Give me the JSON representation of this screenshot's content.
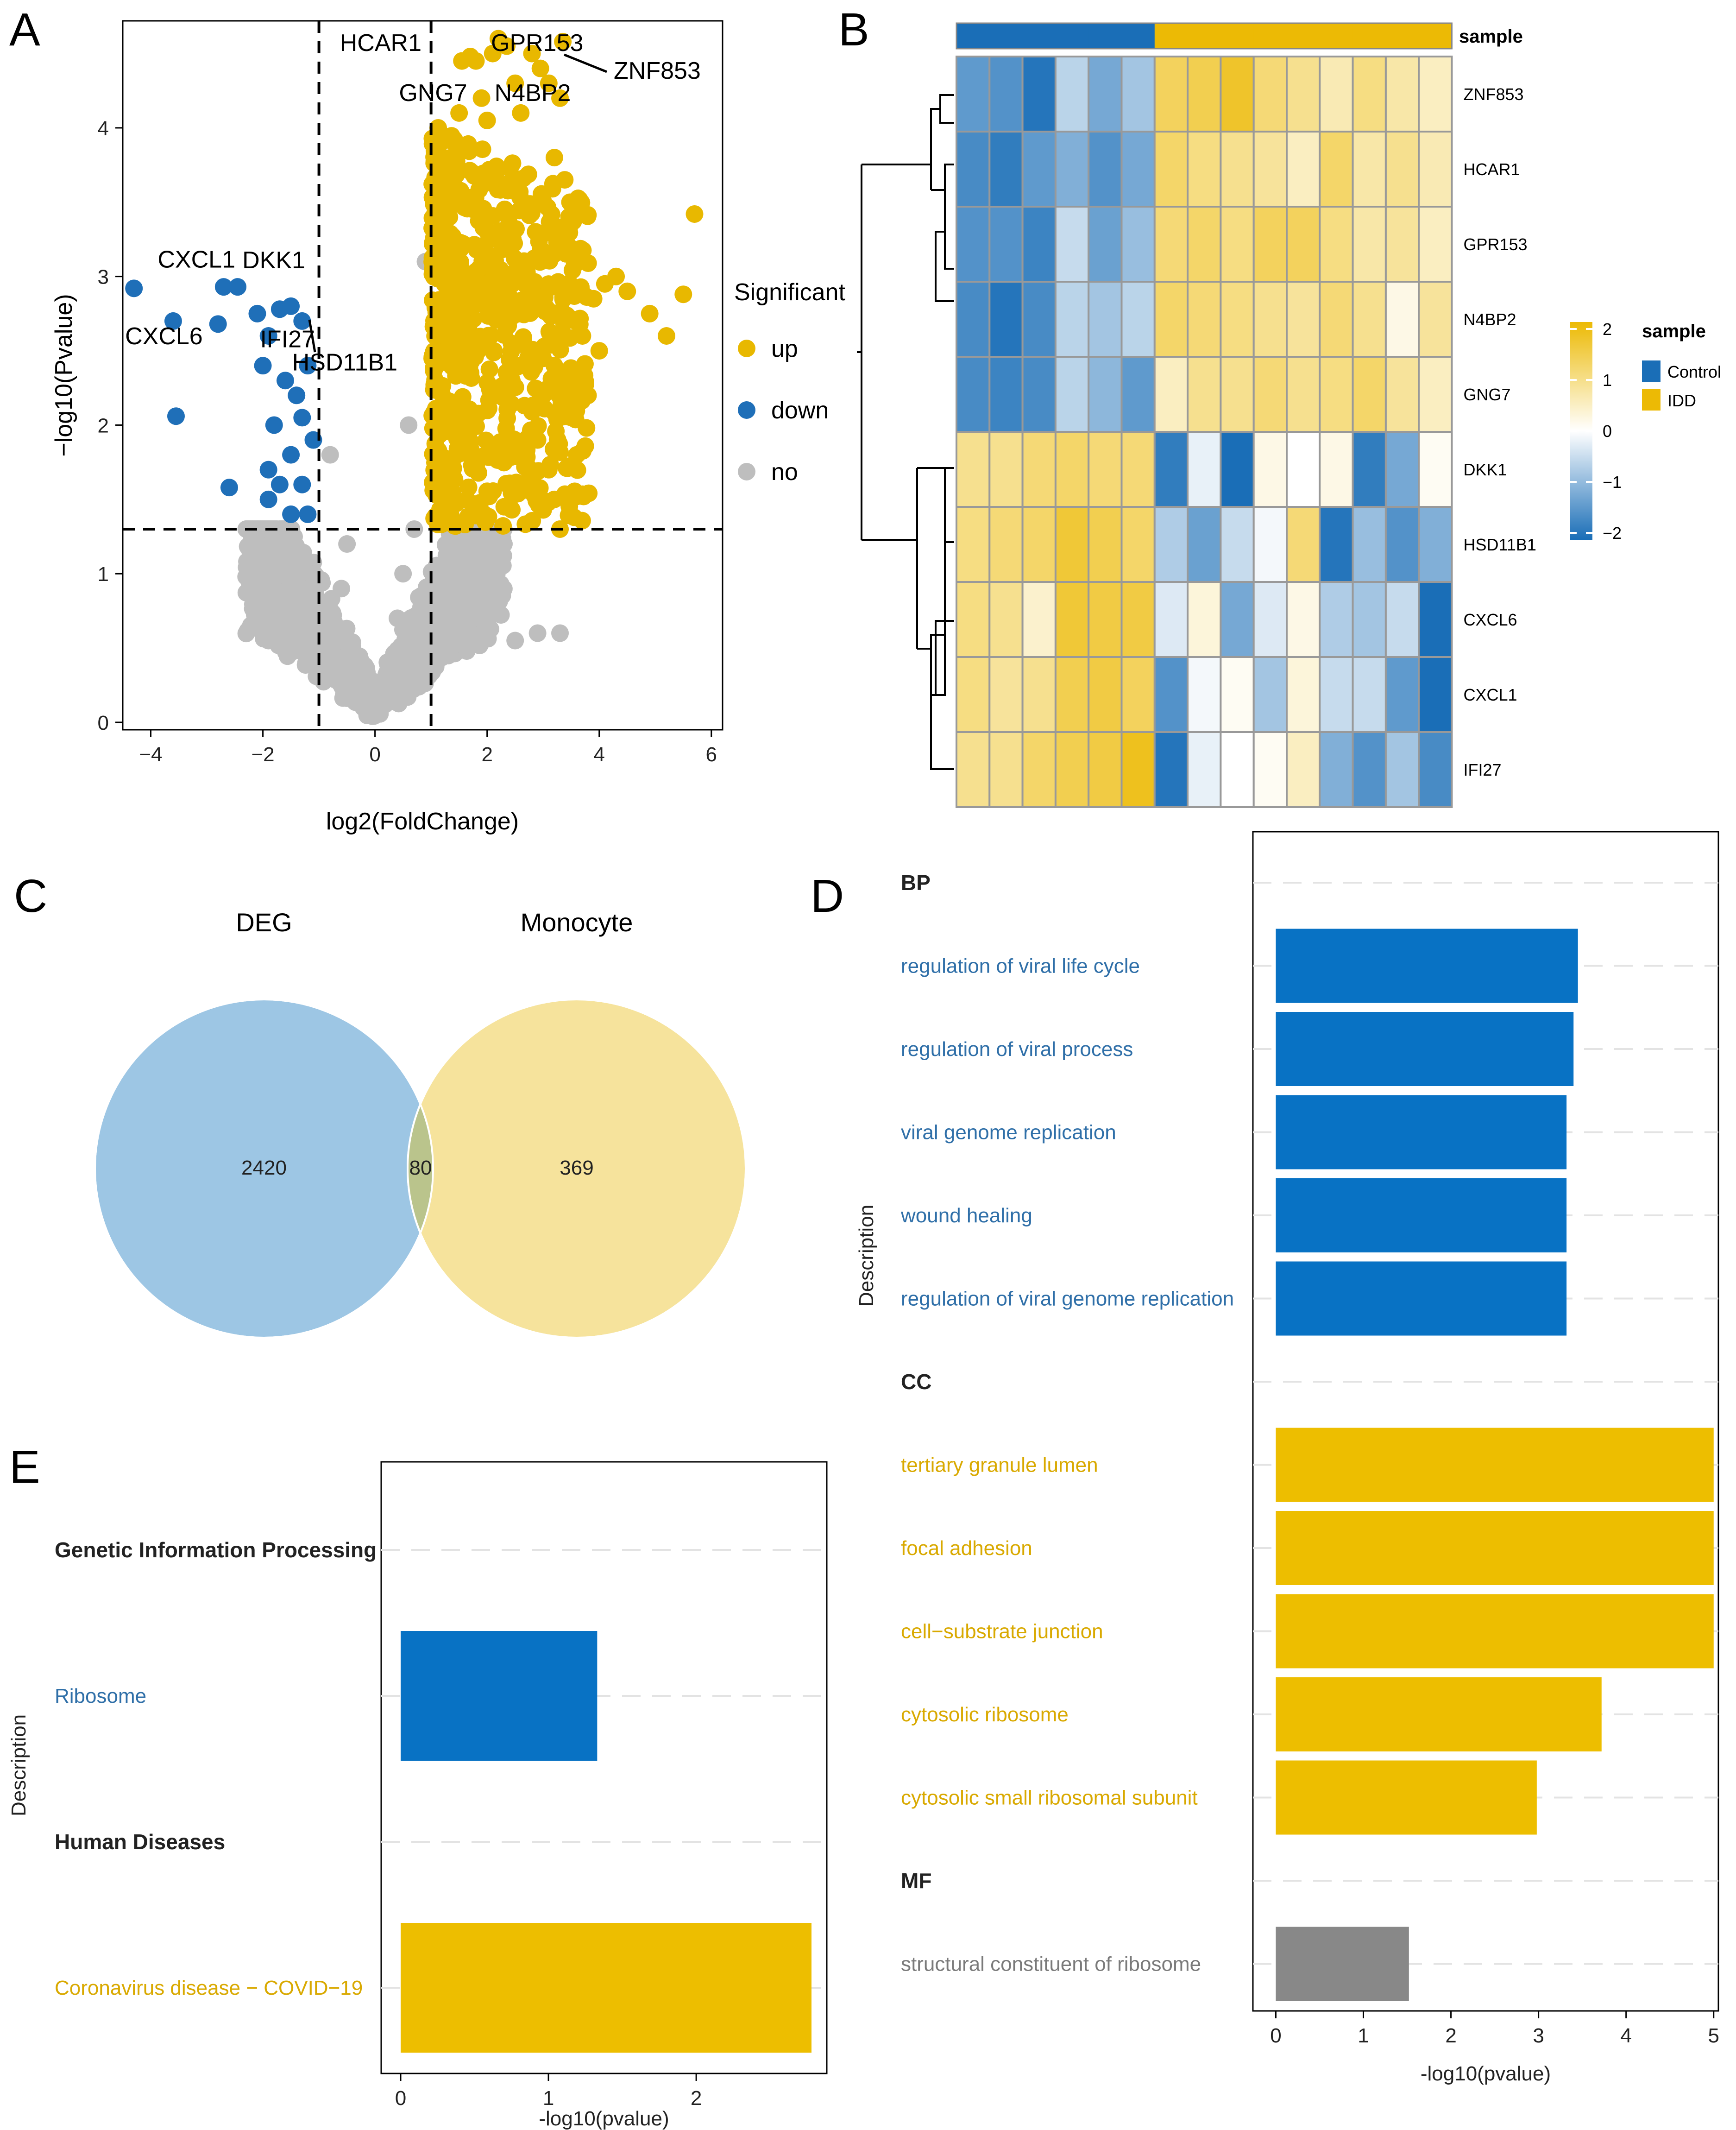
{
  "colors": {
    "up": "#E8B800",
    "down": "#1F6FB8",
    "no": "#BEBEBE",
    "bar_blue": "#0872C4",
    "bar_gold": "#EDBE00",
    "bar_gray": "#888888",
    "venn_blue": "#9DC6E4",
    "venn_yellow": "#F6E39C",
    "venn_overlap": "#BAC48C",
    "heat_low": "#1A6EB7",
    "heat_mid": "#FFFFFF",
    "heat_high": "#ECBA05",
    "term_blue": "#2F6FA8",
    "term_gold": "#D9A900",
    "term_gray": "#7A7A7A"
  },
  "chart_data": [
    {
      "panel": "A",
      "type": "scatter",
      "subtype": "volcano",
      "xlabel": "log2(FoldChange)",
      "ylabel": "−log10(Pvalue)",
      "xlim": [
        -4.5,
        6.2
      ],
      "ylim": [
        -0.05,
        4.72
      ],
      "xticks": [
        -4,
        -2,
        0,
        2,
        4,
        6
      ],
      "yticks": [
        0,
        1,
        2,
        3,
        4
      ],
      "xtick_labels": [
        "−4",
        "−2",
        "0",
        "2",
        "4",
        "6"
      ],
      "ytick_labels": [
        "0",
        "1",
        "2",
        "3",
        "4"
      ],
      "thresholds": {
        "x": [
          -1,
          1
        ],
        "y": 1.3
      },
      "legend": {
        "title": "Significant",
        "items": [
          "up",
          "down",
          "no"
        ],
        "position": "right"
      },
      "labeled_points": [
        {
          "gene": "HCAR1",
          "x": 1.55,
          "y": 4.45
        },
        {
          "gene": "GPR153",
          "x": 2.15,
          "y": 4.5
        },
        {
          "gene": "ZNF853",
          "x": 3.35,
          "y": 4.58
        },
        {
          "gene": "GNG7",
          "x": 1.1,
          "y": 4.25
        },
        {
          "gene": "N4BP2",
          "x": 2.5,
          "y": 4.3
        },
        {
          "gene": "CXCL1",
          "x": -4.3,
          "y": 2.92
        },
        {
          "gene": "DKK1",
          "x": -2.45,
          "y": 2.93
        },
        {
          "gene": "CXCL6",
          "x": -3.6,
          "y": 2.7
        },
        {
          "gene": "IFI27",
          "x": -2.8,
          "y": 2.68
        },
        {
          "gene": "HSD11B1",
          "x": -1.2,
          "y": 2.68
        }
      ],
      "label_texts": [
        {
          "text": "HCAR1"
        },
        {
          "text": "GPR153"
        },
        {
          "text": "ZNF853"
        },
        {
          "text": "GNG7"
        },
        {
          "text": "N4BP2"
        },
        {
          "text": "CXCL1"
        },
        {
          "text": "DKK1"
        },
        {
          "text": "CXCL6"
        },
        {
          "text": "IFI27"
        },
        {
          "text": "HSD11B1"
        }
      ],
      "up_points": [
        [
          5.7,
          3.42
        ],
        [
          5.5,
          2.88
        ],
        [
          5.2,
          2.6
        ],
        [
          4.9,
          2.75
        ],
        [
          4.5,
          2.9
        ],
        [
          4.3,
          3.0
        ],
        [
          4.1,
          2.95
        ],
        [
          3.9,
          2.85
        ],
        [
          3.7,
          2.6
        ],
        [
          3.6,
          3.1
        ],
        [
          3.35,
          4.58
        ],
        [
          3.3,
          4.2
        ],
        [
          3.2,
          3.8
        ],
        [
          3.1,
          4.3
        ],
        [
          2.95,
          4.4
        ],
        [
          2.8,
          4.5
        ],
        [
          2.6,
          4.1
        ],
        [
          2.5,
          4.3
        ],
        [
          2.35,
          4.55
        ],
        [
          2.2,
          4.6
        ],
        [
          2.1,
          4.5
        ],
        [
          2.0,
          4.05
        ],
        [
          1.9,
          4.2
        ],
        [
          1.8,
          4.45
        ],
        [
          1.7,
          4.48
        ],
        [
          1.55,
          4.45
        ],
        [
          1.5,
          4.1
        ],
        [
          3.3,
          1.3
        ],
        [
          3.1,
          1.7
        ],
        [
          2.9,
          1.9
        ],
        [
          3.0,
          2.2
        ],
        [
          2.7,
          1.6
        ],
        [
          2.6,
          2.4
        ],
        [
          3.2,
          2.4
        ],
        [
          3.4,
          2.7
        ],
        [
          3.5,
          2.3
        ],
        [
          3.8,
          2.2
        ],
        [
          4.0,
          2.5
        ],
        [
          3.6,
          1.8
        ],
        [
          3.2,
          1.5
        ]
      ],
      "down_points": [
        [
          -4.3,
          2.92
        ],
        [
          -3.6,
          2.7
        ],
        [
          -3.55,
          2.06
        ],
        [
          -2.8,
          2.68
        ],
        [
          -2.7,
          2.93
        ],
        [
          -2.45,
          2.93
        ],
        [
          -2.6,
          1.58
        ],
        [
          -2.1,
          2.75
        ],
        [
          -1.9,
          2.6
        ],
        [
          -1.7,
          2.78
        ],
        [
          -1.5,
          2.8
        ],
        [
          -1.3,
          2.7
        ],
        [
          -1.2,
          2.4
        ],
        [
          -1.4,
          2.2
        ],
        [
          -1.6,
          2.3
        ],
        [
          -1.8,
          2.0
        ],
        [
          -1.5,
          1.8
        ],
        [
          -1.3,
          1.6
        ],
        [
          -1.7,
          1.6
        ],
        [
          -1.9,
          1.7
        ],
        [
          -2.0,
          2.4
        ],
        [
          -1.2,
          1.4
        ],
        [
          -1.5,
          1.4
        ],
        [
          -1.9,
          1.5
        ],
        [
          -1.1,
          1.9
        ],
        [
          -1.3,
          2.05
        ]
      ],
      "no_points": [
        [
          -2.3,
          0.98
        ],
        [
          -2.0,
          1.15
        ],
        [
          -1.8,
          0.8
        ],
        [
          -1.6,
          0.6
        ],
        [
          -1.9,
          0.55
        ],
        [
          -2.2,
          1.25
        ],
        [
          0.6,
          2.0
        ],
        [
          0.9,
          3.1
        ],
        [
          1.1,
          1.8
        ],
        [
          0.7,
          1.3
        ],
        [
          0.5,
          1.0
        ],
        [
          -0.5,
          1.2
        ],
        [
          -0.8,
          1.8
        ],
        [
          -0.6,
          0.9
        ],
        [
          -0.4,
          0.5
        ],
        [
          0.4,
          0.7
        ],
        [
          0.2,
          0.3
        ],
        [
          1.4,
          0.9
        ],
        [
          1.7,
          0.6
        ],
        [
          2.1,
          0.8
        ],
        [
          2.5,
          0.55
        ],
        [
          2.9,
          0.6
        ],
        [
          3.3,
          0.6
        ],
        [
          1.6,
          1.2
        ],
        [
          1.9,
          1.1
        ],
        [
          2.3,
          1.2
        ]
      ]
    },
    {
      "panel": "B",
      "type": "heatmap",
      "rows": [
        "ZNF853",
        "HCAR1",
        "GPR153",
        "N4BP2",
        "GNG7",
        "DKK1",
        "HSD11B1",
        "CXCL6",
        "CXCL1",
        "IFI27"
      ],
      "annotation_title": "sample",
      "groups": [
        "Control",
        "Control",
        "Control",
        "Control",
        "Control",
        "Control",
        "IDD",
        "IDD",
        "IDD",
        "IDD",
        "IDD",
        "IDD",
        "IDD",
        "IDD",
        "IDD"
      ],
      "values": [
        [
          -1.4,
          -1.5,
          -1.9,
          -0.6,
          -1.2,
          -0.8,
          1.3,
          1.4,
          1.7,
          1.1,
          0.9,
          0.6,
          1.0,
          0.7,
          0.5
        ],
        [
          -1.6,
          -1.8,
          -1.4,
          -1.1,
          -1.5,
          -1.2,
          1.2,
          1.0,
          0.9,
          0.8,
          0.5,
          1.2,
          0.7,
          0.9,
          0.6
        ],
        [
          -1.5,
          -1.5,
          -1.7,
          -0.5,
          -1.3,
          -0.9,
          1.1,
          1.2,
          1.0,
          1.3,
          1.3,
          1.0,
          0.7,
          0.8,
          0.5
        ],
        [
          -1.6,
          -1.9,
          -1.6,
          -0.6,
          -0.8,
          -0.6,
          1.2,
          1.1,
          1.0,
          0.9,
          0.8,
          1.1,
          0.9,
          0.2,
          0.8
        ],
        [
          -1.6,
          -1.7,
          -1.6,
          -0.6,
          -1.0,
          -1.4,
          0.5,
          0.9,
          0.9,
          1.1,
          0.9,
          1.0,
          1.2,
          0.8,
          0.5
        ],
        [
          0.9,
          0.9,
          1.1,
          1.2,
          1.1,
          1.1,
          -1.8,
          -0.2,
          -2.1,
          0.2,
          0.0,
          0.2,
          -1.8,
          -1.2,
          0.1
        ],
        [
          1.0,
          1.1,
          1.2,
          1.6,
          1.4,
          1.2,
          -0.7,
          -1.3,
          -0.5,
          -0.1,
          1.1,
          -1.9,
          -0.9,
          -1.5,
          -1.1
        ],
        [
          1.0,
          0.9,
          0.4,
          1.6,
          1.5,
          1.5,
          -0.3,
          0.3,
          -1.2,
          -0.3,
          0.2,
          -0.7,
          -0.8,
          -0.5,
          -2.2
        ],
        [
          1.0,
          0.8,
          0.9,
          1.4,
          1.5,
          1.3,
          -1.5,
          -0.1,
          0.1,
          -0.8,
          0.3,
          -0.5,
          -0.5,
          -1.4,
          -2.1
        ],
        [
          0.9,
          0.9,
          1.2,
          1.4,
          1.5,
          1.8,
          -1.9,
          -0.2,
          0.0,
          0.1,
          0.5,
          -1.1,
          -1.5,
          -0.8,
          -1.6
        ]
      ],
      "color_scale": {
        "min": -2,
        "max": 2,
        "ticks": [
          "2",
          "1",
          "0",
          "−1",
          "−2"
        ]
      },
      "legend": {
        "title": "sample",
        "items": [
          "Control",
          "IDD"
        ]
      }
    },
    {
      "panel": "C",
      "type": "venn",
      "sets": [
        {
          "name": "DEG",
          "only": "2420"
        },
        {
          "name": "Monocyte",
          "only": "369"
        }
      ],
      "intersection": "80"
    },
    {
      "panel": "D",
      "type": "bar",
      "orientation": "horizontal",
      "xlabel": "-log10(pvalue)",
      "ylabel": "Description",
      "xlim": [
        -0.05,
        5.0
      ],
      "xticks": [
        "0",
        "1",
        "2",
        "3",
        "4",
        "5"
      ],
      "groups": [
        {
          "name": "BP",
          "items": [
            {
              "term": "regulation of viral life cycle",
              "value": 3.45
            },
            {
              "term": "regulation of viral process",
              "value": 3.4
            },
            {
              "term": "viral genome replication",
              "value": 3.32
            },
            {
              "term": "wound healing",
              "value": 3.32
            },
            {
              "term": "regulation of viral genome replication",
              "value": 3.32
            }
          ]
        },
        {
          "name": "CC",
          "items": [
            {
              "term": "tertiary granule lumen",
              "value": 5.0
            },
            {
              "term": "focal adhesion",
              "value": 5.0
            },
            {
              "term": "cell−substrate junction",
              "value": 5.0
            },
            {
              "term": "cytosolic ribosome",
              "value": 3.72
            },
            {
              "term": "cytosolic small ribosomal subunit",
              "value": 2.98
            }
          ]
        },
        {
          "name": "MF",
          "items": [
            {
              "term": "structural constituent of ribosome",
              "value": 1.52
            }
          ]
        }
      ]
    },
    {
      "panel": "E",
      "type": "bar",
      "orientation": "horizontal",
      "xlabel": "-log10(pvalue)",
      "ylabel": "Description",
      "xlim": [
        -0.1,
        2.85
      ],
      "xticks": [
        "0",
        "1",
        "2"
      ],
      "groups": [
        {
          "name": "Genetic Information Processing",
          "items": [
            {
              "term": "Ribosome",
              "value": 1.33
            }
          ]
        },
        {
          "name": "Human Diseases",
          "items": [
            {
              "term": "Coronavirus disease − COVID−19",
              "value": 2.78
            }
          ]
        }
      ]
    }
  ],
  "panel_labels": [
    "A",
    "B",
    "C",
    "D",
    "E"
  ]
}
